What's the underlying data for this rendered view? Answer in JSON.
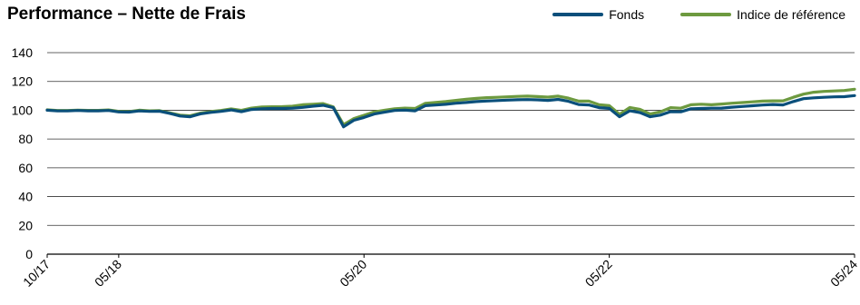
{
  "title": "Performance – Nette de Frais",
  "legend": [
    {
      "label": "Fonds",
      "color": "#0a4f7b"
    },
    {
      "label": "Indice de référence",
      "color": "#6d9a3f"
    }
  ],
  "chart_data": {
    "type": "line",
    "title": "Performance – Nette de Frais",
    "xlabel": "",
    "ylabel": "",
    "ylim": [
      0,
      140
    ],
    "yticks": [
      0,
      20,
      40,
      60,
      80,
      100,
      120,
      140
    ],
    "grid": true,
    "legend_position": "top-right",
    "x": [
      "2017-10",
      "2017-11",
      "2017-12",
      "2018-01",
      "2018-02",
      "2018-03",
      "2018-04",
      "2018-05",
      "2018-06",
      "2018-07",
      "2018-08",
      "2018-09",
      "2018-10",
      "2018-11",
      "2018-12",
      "2019-01",
      "2019-02",
      "2019-03",
      "2019-04",
      "2019-05",
      "2019-06",
      "2019-07",
      "2019-08",
      "2019-09",
      "2019-10",
      "2019-11",
      "2019-12",
      "2020-01",
      "2020-02",
      "2020-03",
      "2020-04",
      "2020-05",
      "2020-06",
      "2020-07",
      "2020-08",
      "2020-09",
      "2020-10",
      "2020-11",
      "2020-12",
      "2021-01",
      "2021-02",
      "2021-03",
      "2021-04",
      "2021-05",
      "2021-06",
      "2021-07",
      "2021-08",
      "2021-09",
      "2021-10",
      "2021-11",
      "2021-12",
      "2022-01",
      "2022-02",
      "2022-03",
      "2022-04",
      "2022-05",
      "2022-06",
      "2022-07",
      "2022-08",
      "2022-09",
      "2022-10",
      "2022-11",
      "2022-12",
      "2023-01",
      "2023-02",
      "2023-03",
      "2023-04",
      "2023-05",
      "2023-06",
      "2023-07",
      "2023-08",
      "2023-09",
      "2023-10",
      "2023-11",
      "2023-12",
      "2024-01",
      "2024-02",
      "2024-03",
      "2024-04",
      "2024-05"
    ],
    "xtick_labels": [
      {
        "label": "10/17",
        "index": 0
      },
      {
        "label": "05/18",
        "index": 7
      },
      {
        "label": "05/20",
        "index": 31
      },
      {
        "label": "05/22",
        "index": 55
      },
      {
        "label": "05/24",
        "index": 79
      }
    ],
    "series": [
      {
        "name": "Fonds",
        "color": "#0a4f7b",
        "values": [
          100,
          99.5,
          99.5,
          99.8,
          99.6,
          99.6,
          99.8,
          98.8,
          98.7,
          99.5,
          99.2,
          99.3,
          97.8,
          96,
          95.5,
          97.5,
          98.5,
          99.2,
          100.2,
          99,
          100.5,
          101,
          101.2,
          101.2,
          101.4,
          102,
          102.8,
          103.4,
          101.8,
          88.5,
          93,
          95,
          97.4,
          98.6,
          99.8,
          100.1,
          99.6,
          103.2,
          103.6,
          104.1,
          104.9,
          105.4,
          106,
          106.4,
          106.7,
          107,
          107.3,
          107.4,
          107.2,
          106.8,
          107.5,
          106.2,
          104,
          103.7,
          101.8,
          101.3,
          95.5,
          99.6,
          98.4,
          95.5,
          96.6,
          99,
          98.9,
          101,
          101.2,
          101.4,
          101.5,
          102.1,
          102.6,
          103.1,
          103.6,
          104,
          103.7,
          106,
          108,
          108.6,
          109,
          109.3,
          109.4,
          110.2
        ]
      },
      {
        "name": "Indice de référence",
        "color": "#6d9a3f",
        "values": [
          100.3,
          99.8,
          99.8,
          100.1,
          99.9,
          99.9,
          100.2,
          99.2,
          99.1,
          100,
          99.6,
          99.7,
          98.2,
          96.6,
          96.1,
          98,
          99.1,
          99.8,
          100.9,
          99.9,
          101.5,
          102.2,
          102.4,
          102.5,
          102.8,
          103.8,
          104.2,
          104.6,
          102.3,
          90,
          94.2,
          96.5,
          98.8,
          100,
          101,
          101.5,
          101.2,
          104.8,
          105.4,
          106,
          106.8,
          107.6,
          108.2,
          108.7,
          109,
          109.3,
          109.6,
          109.8,
          109.5,
          109.1,
          109.8,
          108.4,
          106.3,
          106.3,
          103.8,
          103.2,
          97.2,
          101.9,
          100.6,
          97.4,
          98.9,
          101.8,
          101.4,
          103.8,
          104.2,
          103.8,
          104.3,
          104.9,
          105.3,
          105.8,
          106.3,
          106.5,
          106.5,
          109,
          111.2,
          112.5,
          113.1,
          113.4,
          113.7,
          114.6
        ]
      }
    ]
  }
}
